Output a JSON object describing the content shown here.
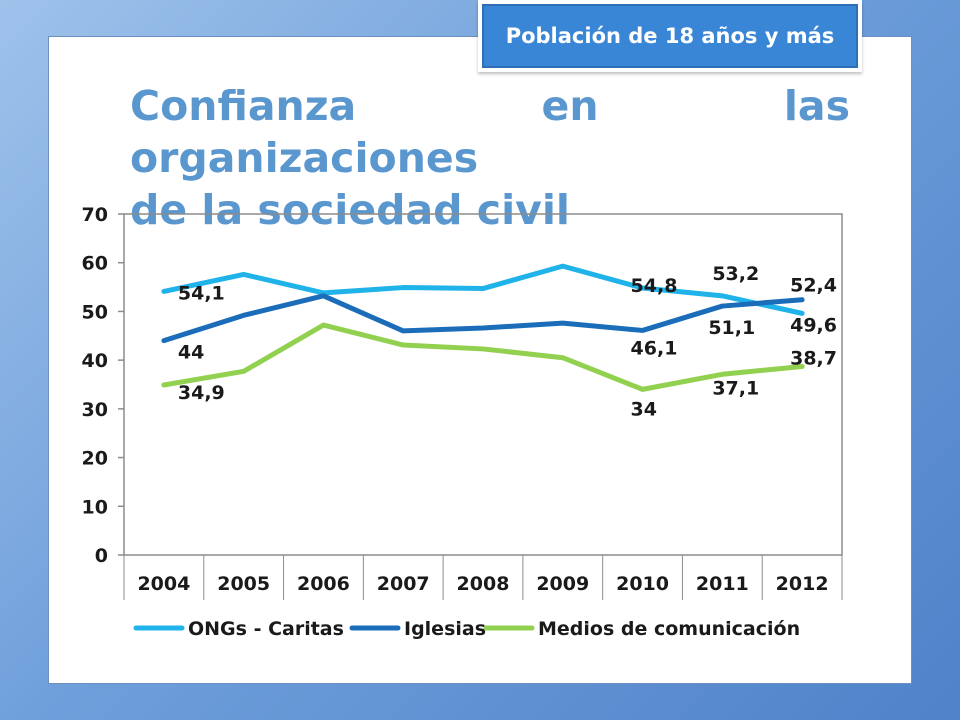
{
  "badge": {
    "text": "Población de 18 años y más"
  },
  "title": {
    "line1": "Confianza en las organizaciones",
    "line2": "de la sociedad civil"
  },
  "colors": {
    "ongs": "#1fb3ea",
    "iglesias": "#1b6db9",
    "medios": "#92d050",
    "title": "#5b97cf",
    "badge": "#3a86d6"
  },
  "chart_data": {
    "type": "line",
    "title": "",
    "xlabel": "",
    "ylabel": "",
    "categories": [
      "2004",
      "2005",
      "2006",
      "2007",
      "2008",
      "2009",
      "2010",
      "2011",
      "2012"
    ],
    "ylim": [
      0,
      70
    ],
    "yticks": [
      0,
      10,
      20,
      30,
      40,
      50,
      60,
      70
    ],
    "grid": false,
    "legend": "bottom",
    "series": [
      {
        "name": "ONGs - Caritas",
        "color": "#1fb3ea",
        "values": [
          54.1,
          57.6,
          53.8,
          54.9,
          54.7,
          59.3,
          54.8,
          53.2,
          49.6
        ],
        "labels": [
          "54,1",
          "",
          "",
          "",
          "",
          "",
          "54,8",
          "53,2",
          "49,6"
        ]
      },
      {
        "name": "Iglesias",
        "color": "#1b6db9",
        "values": [
          44,
          49.2,
          53.2,
          46.0,
          46.6,
          47.6,
          46.1,
          51.1,
          52.4
        ],
        "labels": [
          "44",
          "",
          "",
          "",
          "",
          "",
          "46,1",
          "51,1",
          "52,4"
        ]
      },
      {
        "name": "Medios de comunicación",
        "color": "#92d050",
        "values": [
          34.9,
          37.7,
          47.2,
          43.1,
          42.3,
          40.5,
          34,
          37.1,
          38.7
        ],
        "labels": [
          "34,9",
          "",
          "",
          "",
          "",
          "",
          "34",
          "37,1",
          "38,7"
        ]
      }
    ]
  }
}
